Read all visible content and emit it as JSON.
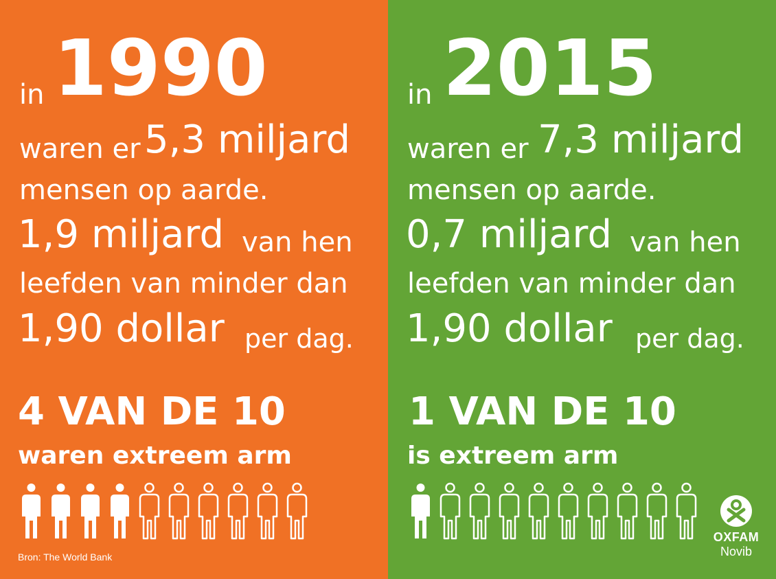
{
  "colors": {
    "left_bg": "#f07125",
    "right_bg": "#63a536",
    "text": "#ffffff"
  },
  "left": {
    "in": "in",
    "year": "1990",
    "waren_er": "waren er",
    "population": "5,3 miljard",
    "mensen": "mensen op aarde.",
    "poor": "1,9 miljard",
    "van_hen": "van hen",
    "leefden": "leefden van minder dan",
    "dollar": "1,90 dollar",
    "per_dag": "per dag.",
    "ratio": "4 VAN DE 10",
    "ratio_caption": "waren extreem arm",
    "people_filled": 4,
    "people_total": 10,
    "source": "Bron: The World Bank"
  },
  "right": {
    "in": "in",
    "year": "2015",
    "waren_er": "waren er",
    "population": "7,3 miljard",
    "mensen": "mensen op aarde.",
    "poor": "0,7 miljard",
    "van_hen": "van hen",
    "leefden": "leefden van minder dan",
    "dollar": "1,90 dollar",
    "per_dag": "per dag.",
    "ratio": "1 VAN DE 10",
    "ratio_caption": "is extreem arm",
    "people_filled": 1,
    "people_total": 10
  },
  "logo": {
    "icon": "oxfam-logo-icon",
    "name": "OXFAM",
    "sub": "Novib"
  }
}
